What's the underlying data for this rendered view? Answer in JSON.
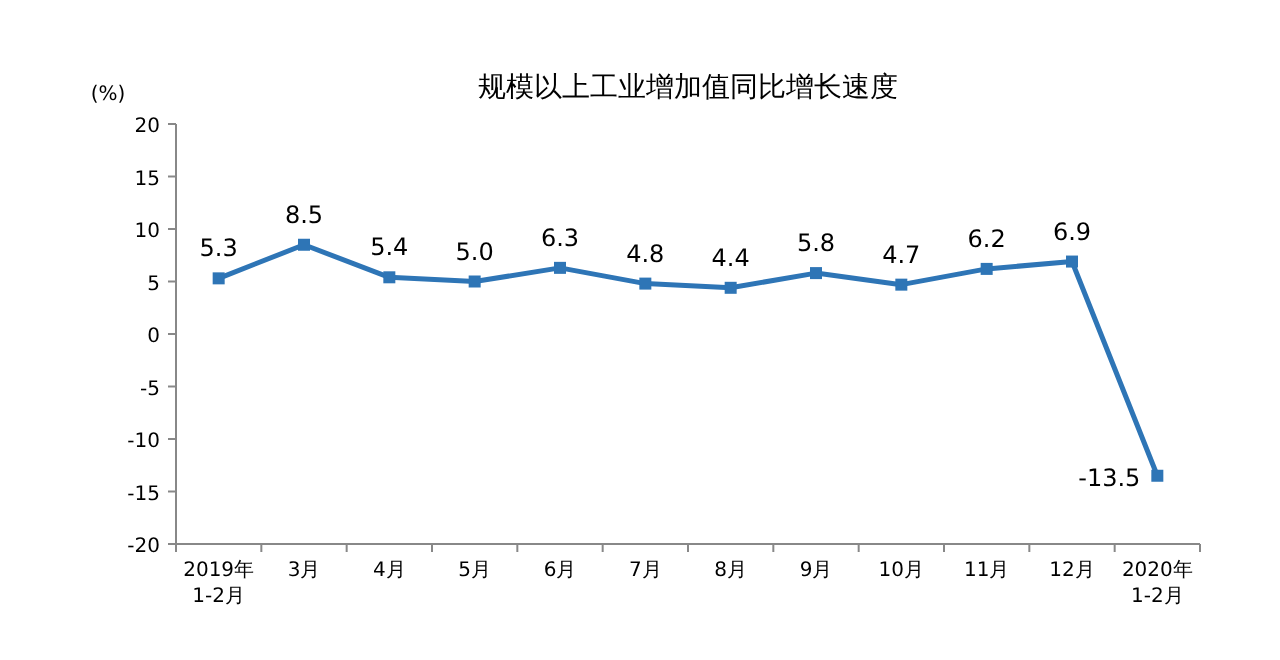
{
  "chart_data": {
    "type": "line",
    "title": "规模以上工业增加值同比增长速度",
    "ylabel": "(%)",
    "categories": [
      "2019年\n1-2月",
      "3月",
      "4月",
      "5月",
      "6月",
      "7月",
      "8月",
      "9月",
      "10月",
      "11月",
      "12月",
      "2020年\n1-2月"
    ],
    "series": [
      {
        "color": "#2e75b6",
        "values": [
          5.3,
          8.5,
          5.4,
          5.0,
          6.3,
          4.8,
          4.4,
          5.8,
          4.7,
          6.2,
          6.9,
          -13.5
        ],
        "value_labels": [
          "5.3",
          "8.5",
          "5.4",
          "5.0",
          "6.3",
          "4.8",
          "4.4",
          "5.8",
          "4.7",
          "6.2",
          "6.9",
          "-13.5"
        ]
      }
    ],
    "ylim": [
      -20,
      20
    ],
    "yticks": [
      -20,
      -15,
      -10,
      -5,
      0,
      5,
      10,
      15,
      20
    ],
    "marker": "square",
    "line_style": "solid",
    "grid": false
  }
}
